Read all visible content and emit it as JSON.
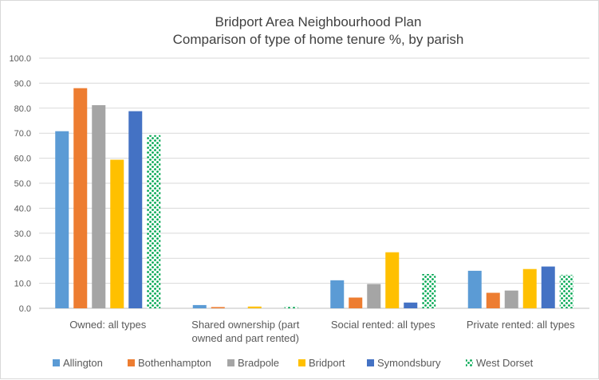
{
  "chart_data": {
    "type": "bar",
    "title": "Bridport Area Neighbourhood Plan",
    "subtitle": "Comparison of type of home tenure %, by parish",
    "categories": [
      [
        "Owned: all types"
      ],
      [
        "Shared ownership (part",
        "owned and part rented)"
      ],
      [
        "Social rented: all types"
      ],
      [
        "Private rented: all types"
      ]
    ],
    "series": [
      {
        "name": "Allington",
        "color": "#5b9bd5",
        "pattern": false,
        "values": [
          70.8,
          1.3,
          11.2,
          15.0
        ]
      },
      {
        "name": "Bothenhampton",
        "color": "#ed7d31",
        "pattern": false,
        "values": [
          88.0,
          0.5,
          4.3,
          6.2
        ]
      },
      {
        "name": "Bradpole",
        "color": "#a5a5a5",
        "pattern": false,
        "values": [
          81.2,
          0.0,
          9.7,
          7.1
        ]
      },
      {
        "name": "Bridport",
        "color": "#ffc000",
        "pattern": false,
        "values": [
          59.4,
          0.7,
          22.4,
          15.7
        ]
      },
      {
        "name": "Symondsbury",
        "color": "#4472c4",
        "pattern": false,
        "values": [
          78.8,
          0.0,
          2.3,
          16.7
        ]
      },
      {
        "name": "West Dorset",
        "color": "#00a651",
        "pattern": true,
        "values": [
          69.2,
          0.7,
          13.7,
          13.4
        ]
      }
    ],
    "ylim": [
      0,
      100
    ],
    "yticks": [
      "0.0",
      "10.0",
      "20.0",
      "30.0",
      "40.0",
      "50.0",
      "60.0",
      "70.0",
      "80.0",
      "90.0",
      "100.0"
    ],
    "xlabel": "",
    "ylabel": "",
    "grid": true,
    "legend_position": "bottom"
  }
}
